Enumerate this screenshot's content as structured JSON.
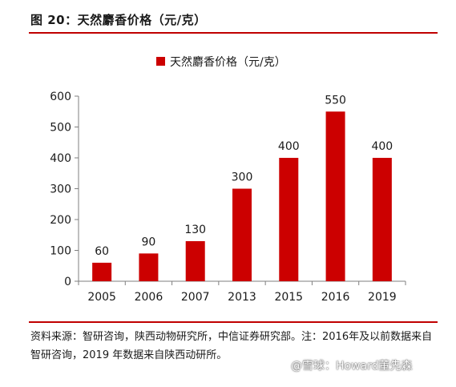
{
  "figure": {
    "title": "图 20：天然麝香价格（元/克）",
    "source": "资料来源：智研咨询，陕西动物研究所，中信证券研究部。注：2016年及以前数据来自智研咨询，2019 年数据来自陕西动研所。",
    "watermark": "@雪球：Howard董先森"
  },
  "colors": {
    "bar": "#cc0000",
    "rule": "#c00000",
    "axis": "#7f7f7f"
  },
  "chart_data": {
    "type": "bar",
    "categories": [
      "2005",
      "2006",
      "2007",
      "2013",
      "2015",
      "2016",
      "2019"
    ],
    "series": [
      {
        "name": "天然麝香价格（元/克）",
        "values": [
          60,
          90,
          130,
          300,
          400,
          550,
          400
        ]
      }
    ],
    "data_labels": [
      "60",
      "90",
      "130",
      "300",
      "400",
      "550",
      "400"
    ],
    "ylim": [
      0,
      600
    ],
    "yticks": [
      "0",
      "100",
      "200",
      "300",
      "400",
      "500",
      "600"
    ],
    "legend": "top-center",
    "grid": false
  }
}
